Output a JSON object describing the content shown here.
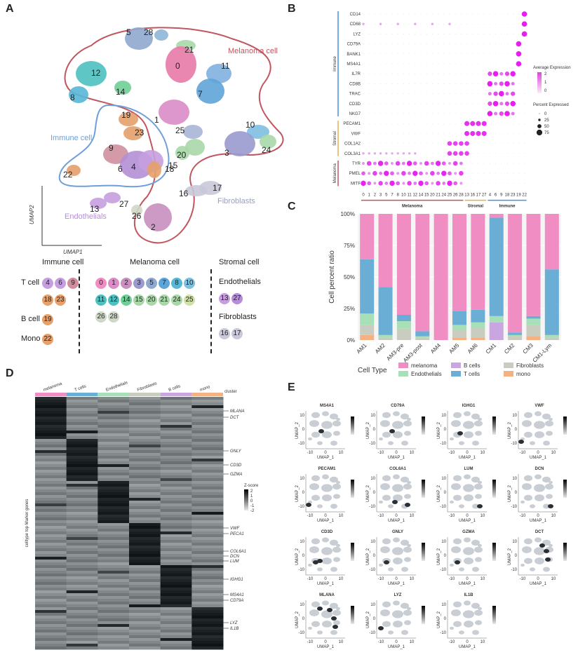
{
  "panels": {
    "a": "A",
    "b": "B",
    "c": "C",
    "d": "D",
    "e": "E"
  },
  "umap": {
    "xlabel": "UMAP1",
    "ylabel": "UMAP2",
    "regions": [
      "Melanoma cell",
      "Immune cell",
      "Endothelials",
      "Fibroblasts"
    ],
    "cluster_labels": [
      "5",
      "28",
      "21",
      "0",
      "12",
      "8",
      "14",
      "11",
      "7",
      "19",
      "23",
      "1",
      "25",
      "9",
      "6",
      "4",
      "18",
      "20",
      "15",
      "10",
      "3",
      "24",
      "22",
      "16",
      "17",
      "27",
      "13",
      "26",
      "2"
    ],
    "region_colors": {
      "melanoma": "#c0565f",
      "immune": "#6f9fd8",
      "endo": "#b58dd8",
      "fibro": "#9aa0b8"
    }
  },
  "legend_a": {
    "headers": [
      "Immune cell",
      "Melanoma cell",
      "Stromal cell"
    ],
    "rows": [
      {
        "label": "T cell",
        "items": [
          "4",
          "6",
          "9"
        ]
      },
      {
        "label": "",
        "items": [
          "18",
          "23"
        ]
      },
      {
        "label": "B cell",
        "items": [
          "19"
        ]
      },
      {
        "label": "Mono",
        "items": [
          "22"
        ]
      }
    ],
    "melanoma_rows": [
      [
        "0",
        "1",
        "2",
        "3",
        "5",
        "7",
        "8",
        "10"
      ],
      [
        "11",
        "12",
        "14",
        "15",
        "20",
        "21",
        "24",
        "25"
      ],
      [
        "26",
        "28"
      ]
    ],
    "stromal": [
      {
        "label": "Endothelials",
        "items": [
          "13",
          "27"
        ]
      },
      {
        "label": "Fibroblasts",
        "items": [
          "16",
          "17"
        ]
      }
    ]
  },
  "chart_data": [
    {
      "type": "scatter",
      "title": "",
      "xlabel": "",
      "ylabel": "",
      "genes": [
        "CD14",
        "CD68",
        "LYZ",
        "CD79A",
        "BANK1",
        "MS4A1",
        "IL7R",
        "CD8B",
        "TRAC",
        "CD3D",
        "NKG7",
        "PECAM1",
        "VWF",
        "COL1A2",
        "COL3A1",
        "TYR",
        "PMEL",
        "MITF"
      ],
      "clusters": [
        "0",
        "1",
        "2",
        "3",
        "5",
        "7",
        "8",
        "10",
        "11",
        "12",
        "14",
        "15",
        "20",
        "21",
        "24",
        "25",
        "26",
        "28",
        "13",
        "16",
        "17",
        "27",
        "4",
        "6",
        "9",
        "18",
        "23",
        "19",
        "22"
      ],
      "groups": [
        "Melanoma",
        "Stromal",
        "Immune"
      ],
      "gene_groups": [
        "Immune",
        "Stromal",
        "Melanoma"
      ],
      "legend": {
        "avg_title": "Average Expression",
        "avg_ticks": [
          "2",
          "1",
          "0"
        ],
        "pct_title": "Percent Expressed",
        "pct_ticks": [
          "0",
          "25",
          "50",
          "75"
        ]
      }
    },
    {
      "type": "bar",
      "title": "",
      "xlabel": "",
      "ylabel": "Cell percent ratio",
      "categories": [
        "AM1",
        "AM2",
        "AM3-pre",
        "AM3-post",
        "AM4",
        "AM5",
        "AM6",
        "CM1",
        "CM2",
        "CM3",
        "CM1-Lym"
      ],
      "yticks": [
        "0%",
        "25%",
        "50%",
        "75%",
        "100%"
      ],
      "legend_title": "Cell Type",
      "series": [
        {
          "name": "mono",
          "color": "#f4b183",
          "values": [
            0.04,
            0.0,
            0.0,
            0.0,
            0.0,
            0.02,
            0.02,
            0.0,
            0.0,
            0.03,
            0.0
          ]
        },
        {
          "name": "Fibroblasts",
          "color": "#c9cdc0",
          "values": [
            0.08,
            0.02,
            0.09,
            0.02,
            0.0,
            0.06,
            0.08,
            0.0,
            0.03,
            0.09,
            0.02
          ]
        },
        {
          "name": "B cells",
          "color": "#c9a6e0",
          "values": [
            0.0,
            0.0,
            0.0,
            0.0,
            0.0,
            0.0,
            0.0,
            0.14,
            0.0,
            0.0,
            0.0
          ]
        },
        {
          "name": "Endothelials",
          "color": "#a6dfb8",
          "values": [
            0.09,
            0.02,
            0.06,
            0.01,
            0.0,
            0.04,
            0.04,
            0.05,
            0.01,
            0.05,
            0.02
          ]
        },
        {
          "name": "T cells",
          "color": "#6aaed6",
          "values": [
            0.43,
            0.38,
            0.05,
            0.04,
            0.0,
            0.11,
            0.1,
            0.78,
            0.02,
            0.02,
            0.52
          ]
        },
        {
          "name": "melanoma",
          "color": "#f08ec3",
          "values": [
            0.36,
            0.58,
            0.8,
            0.93,
            1.0,
            0.77,
            0.76,
            0.03,
            0.94,
            0.81,
            0.44
          ]
        }
      ],
      "legend_order": [
        "melanoma",
        "Endothelials",
        "B cells",
        "T cells",
        "Fibroblasts",
        "mono"
      ]
    },
    {
      "type": "heatmap",
      "title": "",
      "ylabel": "celltype top Marker genes",
      "columns": [
        "melanoma",
        "T cells",
        "Endothelials",
        "Fibroblasts",
        "B cells",
        "mono"
      ],
      "cluster_label": "cluster",
      "column_colors": [
        "#f08ec3",
        "#6aaed6",
        "#a6dfb8",
        "#c9cdc0",
        "#c9a6e0",
        "#f4b183"
      ],
      "marked_genes": [
        "MLANA",
        "DCT",
        "GNLY",
        "CD3D",
        "GZMA",
        "VWF",
        "PECA1",
        "COL6A1",
        "DCN",
        "LUM",
        "IGHG1",
        "MS4A1",
        "CD79A",
        "LYZ",
        "IL1B"
      ],
      "legend_title": "Z-score",
      "legend_ticks": [
        "2",
        "1",
        "0",
        "-1",
        "-2"
      ]
    },
    {
      "type": "scatter",
      "title": "",
      "xlabel": "UMAP_1",
      "ylabel": "UMAP_2",
      "panels": [
        "MS4A1",
        "CD79A",
        "IGHG1",
        "VWF",
        "PECAM1",
        "COL6A1",
        "LUM",
        "DCN",
        "CD3D",
        "GNLY",
        "GZMA",
        "DCT",
        "MLANA",
        "LYZ",
        "IL1B"
      ],
      "x_ticks": [
        "-10",
        "0",
        "10"
      ],
      "y_ticks": [
        "10",
        "0",
        "-10"
      ]
    }
  ]
}
